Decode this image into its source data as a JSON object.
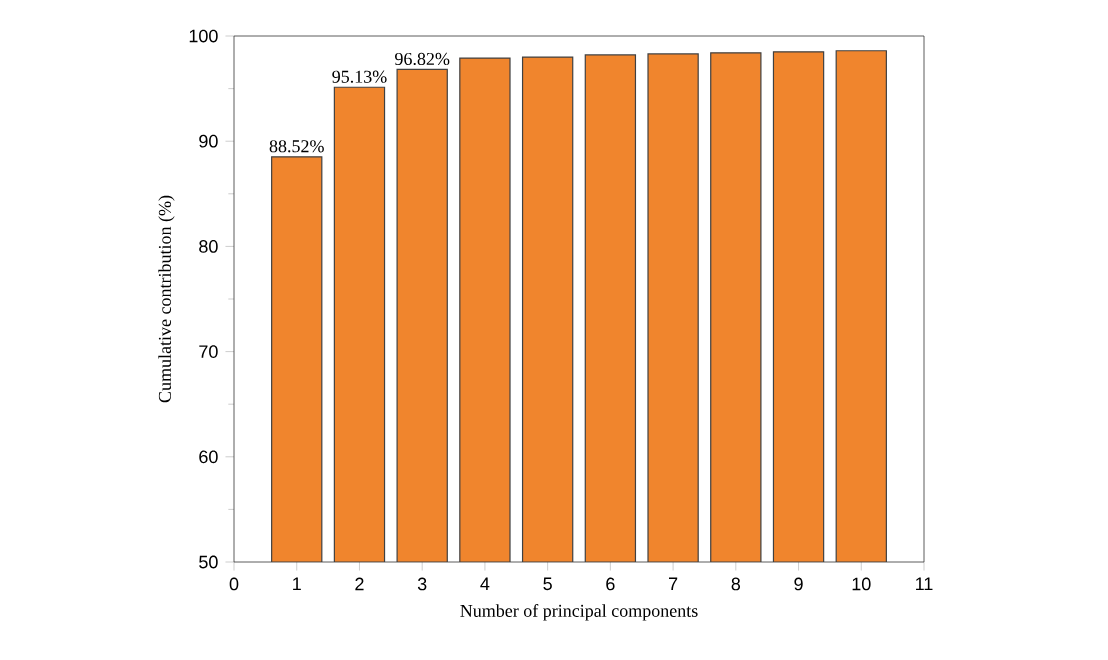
{
  "chart_data": {
    "type": "bar",
    "xlabel": "Number of principal components",
    "ylabel": "Cumulative contribution (%)",
    "x": [
      1,
      2,
      3,
      4,
      5,
      6,
      7,
      8,
      9,
      10
    ],
    "values": [
      88.52,
      95.13,
      96.82,
      97.9,
      98.0,
      98.2,
      98.3,
      98.4,
      98.5,
      98.6
    ],
    "value_labels": [
      "88.52%",
      "95.13%",
      "96.82%",
      null,
      null,
      null,
      null,
      null,
      null,
      null
    ],
    "color": "#f0852d",
    "xlim": [
      0,
      11
    ],
    "xticks": [
      0,
      1,
      2,
      3,
      4,
      5,
      6,
      7,
      8,
      9,
      10,
      11
    ],
    "ylim": [
      50,
      100
    ],
    "yticks": [
      50,
      60,
      70,
      80,
      90,
      100
    ],
    "grid": false
  }
}
